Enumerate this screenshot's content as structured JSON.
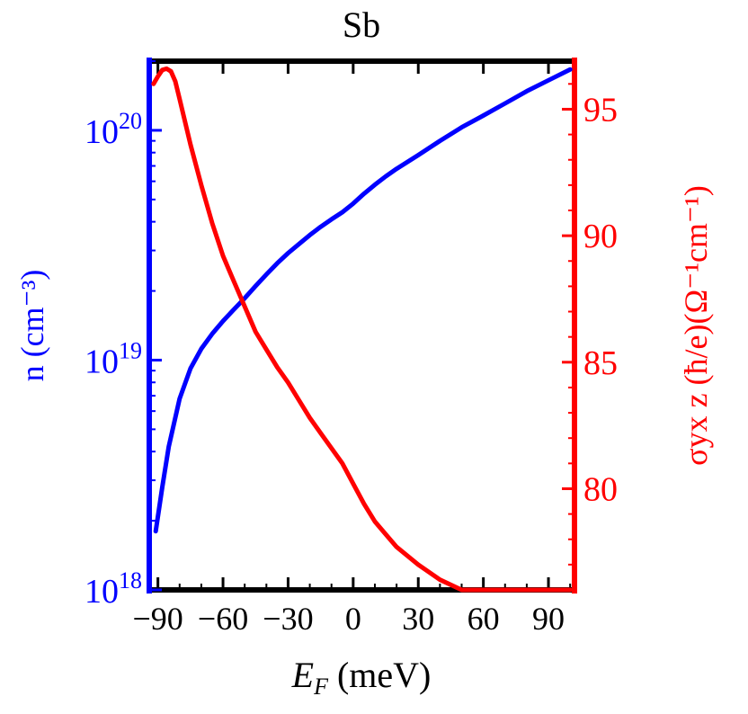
{
  "chart_data": {
    "type": "line",
    "title": "Sb",
    "xlabel": {
      "var": "E",
      "sub": "F",
      "unit": " (meV)"
    },
    "xlim": [
      -94,
      102
    ],
    "xticks": [
      -90,
      -60,
      -30,
      0,
      30,
      60,
      90
    ],
    "xtick_labels": [
      "−90",
      "−60",
      "−30",
      "0",
      "30",
      "60",
      "90"
    ],
    "y_left": {
      "label": "n (cm⁻³)",
      "scale": "log",
      "ylim": [
        1e+18,
        2e+20
      ],
      "ticks": [
        {
          "value": 1e+18,
          "base": "10",
          "exp": "18"
        },
        {
          "value": 1e+19,
          "base": "10",
          "exp": "19"
        },
        {
          "value": 1e+20,
          "base": "10",
          "exp": "20"
        }
      ],
      "color": "#0000ff"
    },
    "y_right": {
      "label": "σyx z (ħ/e)(Ω⁻¹cm⁻¹)",
      "scale": "linear",
      "ylim": [
        76,
        96.9
      ],
      "ticks": [
        80,
        85,
        90,
        95
      ],
      "tick_labels": [
        "80",
        "85",
        "90",
        "95"
      ],
      "color": "#ff0000"
    },
    "series": [
      {
        "axis": "left",
        "color": "#0000ff",
        "x": [
          -91,
          -88,
          -85,
          -80,
          -75,
          -70,
          -65,
          -60,
          -55,
          -50,
          -45,
          -40,
          -35,
          -30,
          -25,
          -20,
          -15,
          -10,
          -5,
          0,
          5,
          10,
          15,
          20,
          30,
          40,
          50,
          60,
          70,
          80,
          90,
          100
        ],
        "y": [
          1.8e+18,
          2.8e+18,
          4.2e+18,
          6.8e+18,
          9.2e+18,
          1.12e+19,
          1.3e+19,
          1.48e+19,
          1.66e+19,
          1.86e+19,
          2.1e+19,
          2.36e+19,
          2.64e+19,
          2.92e+19,
          3.2e+19,
          3.5e+19,
          3.8e+19,
          4.1e+19,
          4.4e+19,
          4.8e+19,
          5.3e+19,
          5.8e+19,
          6.3e+19,
          6.8e+19,
          7.8e+19,
          9e+19,
          1.03e+20,
          1.16e+20,
          1.31e+20,
          1.48e+20,
          1.65e+20,
          1.84e+20
        ]
      },
      {
        "axis": "right",
        "color": "#ff0000",
        "x": [
          -92,
          -90,
          -88,
          -86,
          -84,
          -82,
          -80,
          -75,
          -70,
          -65,
          -60,
          -55,
          -50,
          -45,
          -40,
          -35,
          -30,
          -25,
          -20,
          -15,
          -10,
          -5,
          0,
          5,
          10,
          15,
          20,
          30,
          40,
          50,
          60,
          70,
          80,
          90,
          100
        ],
        "y": [
          96.0,
          96.3,
          96.55,
          96.6,
          96.5,
          96.1,
          95.4,
          93.6,
          92.0,
          90.5,
          89.2,
          88.2,
          87.2,
          86.2,
          85.5,
          84.8,
          84.2,
          83.5,
          82.8,
          82.2,
          81.6,
          81.0,
          80.2,
          79.4,
          78.7,
          78.2,
          77.7,
          77.0,
          76.4,
          75.9,
          75.4,
          75.0,
          74.7,
          74.4,
          74.2
        ]
      }
    ],
    "grid": false
  }
}
